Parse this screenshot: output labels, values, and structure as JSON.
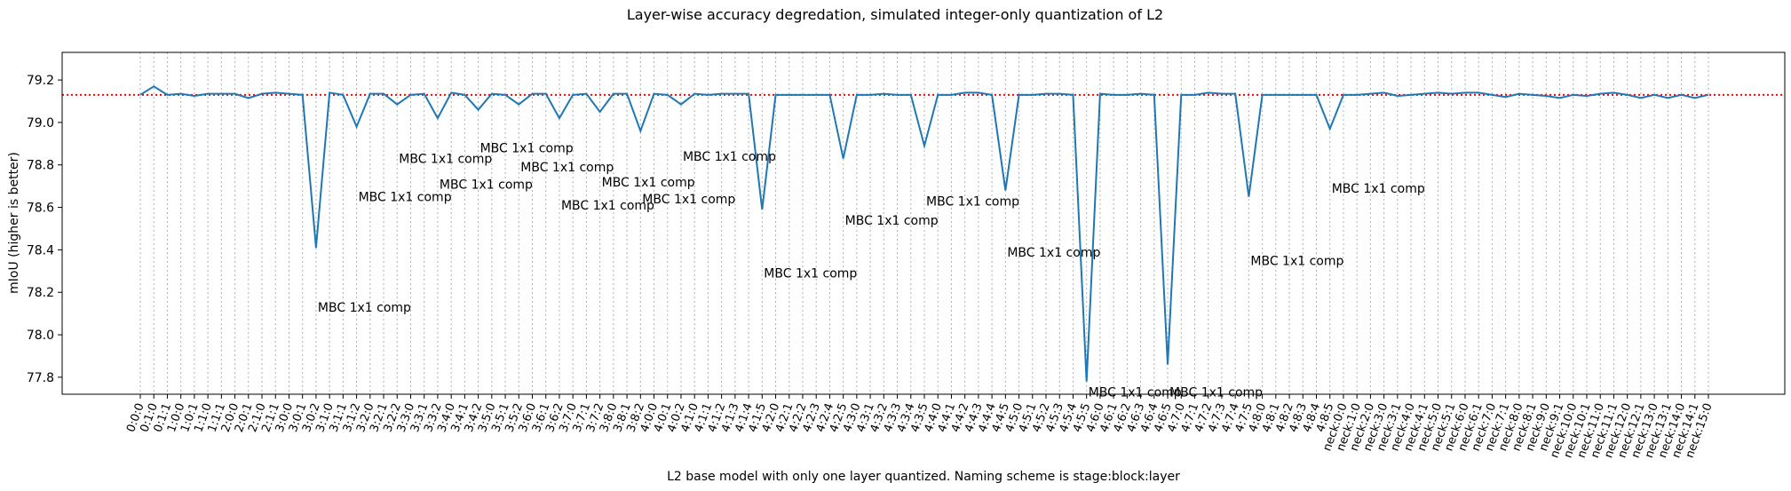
{
  "chart_data": {
    "type": "line",
    "title": "Layer-wise accuracy degredation, simulated integer-only quantization of L2",
    "xlabel": "L2 base model with only one layer quantized. Naming scheme is stage:block:layer",
    "ylabel": "mIoU (higher is better)",
    "ylim": [
      77.72,
      79.33
    ],
    "yticks": [
      77.8,
      78.0,
      78.2,
      78.4,
      78.6,
      78.8,
      79.0,
      79.2
    ],
    "baseline": 79.13,
    "grid": "vertical dotted at every category",
    "colors": {
      "line": "#1f77b4",
      "baseline": "#ff0000",
      "grid": "#b0b0b0"
    },
    "categories": [
      "0:0:0",
      "0:1:0",
      "0:1:1",
      "1:0:0",
      "1:0:1",
      "1:1:0",
      "1:1:1",
      "2:0:0",
      "2:0:1",
      "2:1:0",
      "2:1:1",
      "3:0:0",
      "3:0:1",
      "3:0:2",
      "3:1:0",
      "3:1:1",
      "3:1:2",
      "3:2:0",
      "3:2:1",
      "3:2:2",
      "3:3:0",
      "3:3:1",
      "3:3:2",
      "3:4:0",
      "3:4:1",
      "3:4:2",
      "3:5:0",
      "3:5:1",
      "3:5:2",
      "3:6:0",
      "3:6:1",
      "3:6:2",
      "3:7:0",
      "3:7:1",
      "3:7:2",
      "3:8:0",
      "3:8:1",
      "3:8:2",
      "4:0:0",
      "4:0:1",
      "4:0:2",
      "4:1:0",
      "4:1:1",
      "4:1:2",
      "4:1:3",
      "4:1:4",
      "4:1:5",
      "4:2:0",
      "4:2:1",
      "4:2:2",
      "4:2:3",
      "4:2:4",
      "4:2:5",
      "4:3:0",
      "4:3:1",
      "4:3:2",
      "4:3:3",
      "4:3:4",
      "4:3:5",
      "4:4:0",
      "4:4:1",
      "4:4:2",
      "4:4:3",
      "4:4:4",
      "4:4:5",
      "4:5:0",
      "4:5:1",
      "4:5:2",
      "4:5:3",
      "4:5:4",
      "4:5:5",
      "4:6:0",
      "4:6:1",
      "4:6:2",
      "4:6:3",
      "4:6:4",
      "4:6:5",
      "4:7:0",
      "4:7:1",
      "4:7:2",
      "4:7:3",
      "4:7:4",
      "4:7:5",
      "4:8:0",
      "4:8:1",
      "4:8:2",
      "4:8:3",
      "4:8:4",
      "4:8:5",
      "neck:0:0",
      "neck:1:0",
      "neck:2:0",
      "neck:3:0",
      "neck:3:1",
      "neck:4:0",
      "neck:4:1",
      "neck:5:0",
      "neck:5:1",
      "neck:6:0",
      "neck:6:1",
      "neck:7:0",
      "neck:7:1",
      "neck:8:0",
      "neck:8:1",
      "neck:9:0",
      "neck:9:1",
      "neck:10:0",
      "neck:10:1",
      "neck:11:0",
      "neck:11:1",
      "neck:12:0",
      "neck:12:1",
      "neck:13:0",
      "neck:13:1",
      "neck:14:0",
      "neck:14:1",
      "neck:15:0"
    ],
    "series": [
      {
        "values": [
          79.13,
          79.17,
          79.13,
          79.135,
          79.125,
          79.135,
          79.135,
          79.135,
          79.115,
          79.135,
          79.14,
          79.135,
          79.13,
          78.41,
          79.14,
          79.13,
          78.98,
          79.135,
          79.135,
          79.085,
          79.13,
          79.135,
          79.02,
          79.14,
          79.13,
          79.06,
          79.135,
          79.13,
          79.085,
          79.135,
          79.135,
          79.02,
          79.13,
          79.135,
          79.05,
          79.135,
          79.135,
          78.96,
          79.135,
          79.13,
          79.085,
          79.135,
          79.13,
          79.135,
          79.135,
          79.135,
          78.59,
          79.13,
          79.13,
          79.13,
          79.13,
          79.13,
          78.83,
          79.13,
          79.13,
          79.135,
          79.13,
          79.13,
          78.89,
          79.13,
          79.13,
          79.14,
          79.14,
          79.13,
          78.68,
          79.13,
          79.13,
          79.135,
          79.135,
          79.13,
          77.78,
          79.135,
          79.13,
          79.13,
          79.135,
          79.13,
          77.86,
          79.13,
          79.13,
          79.14,
          79.135,
          79.135,
          78.65,
          79.13,
          79.13,
          79.13,
          79.13,
          79.13,
          78.97,
          79.13,
          79.13,
          79.135,
          79.14,
          79.125,
          79.13,
          79.135,
          79.14,
          79.135,
          79.14,
          79.14,
          79.13,
          79.12,
          79.135,
          79.13,
          79.125,
          79.115,
          79.13,
          79.125,
          79.135,
          79.14,
          79.13,
          79.115,
          79.13,
          79.115,
          79.13,
          79.115,
          79.13
        ]
      }
    ],
    "annotations": [
      {
        "text": "MBC 1x1 comp",
        "x": "3:0:2",
        "y": 78.13
      },
      {
        "text": "MBC 1x1 comp",
        "x": "3:1:2",
        "y": 78.65
      },
      {
        "text": "MBC 1x1 comp",
        "x": "3:2:2",
        "y": 78.83
      },
      {
        "text": "MBC 1x1 comp",
        "x": "3:3:2",
        "y": 78.71
      },
      {
        "text": "MBC 1x1 comp",
        "x": "3:4:2",
        "y": 78.88
      },
      {
        "text": "MBC 1x1 comp",
        "x": "3:5:2",
        "y": 78.79
      },
      {
        "text": "MBC 1x1 comp",
        "x": "3:6:2",
        "y": 78.61
      },
      {
        "text": "MBC 1x1 comp",
        "x": "3:7:2",
        "y": 78.72
      },
      {
        "text": "MBC 1x1 comp",
        "x": "3:8:2",
        "y": 78.64
      },
      {
        "text": "MBC 1x1 comp",
        "x": "4:0:2",
        "y": 78.84
      },
      {
        "text": "MBC 1x1 comp",
        "x": "4:1:5",
        "y": 78.29
      },
      {
        "text": "MBC 1x1 comp",
        "x": "4:2:5",
        "y": 78.54
      },
      {
        "text": "MBC 1x1 comp",
        "x": "4:3:5",
        "y": 78.63
      },
      {
        "text": "MBC 1x1 comp",
        "x": "4:4:5",
        "y": 78.39
      },
      {
        "text": "MBC 1x1 comp",
        "x": "4:5:5",
        "y": 77.73
      },
      {
        "text": "MBC 1x1 comp",
        "x": "4:6:5",
        "y": 77.73
      },
      {
        "text": "MBC 1x1 comp",
        "x": "4:7:5",
        "y": 78.35
      },
      {
        "text": "MBC 1x1 comp",
        "x": "4:8:5",
        "y": 78.69
      }
    ]
  }
}
